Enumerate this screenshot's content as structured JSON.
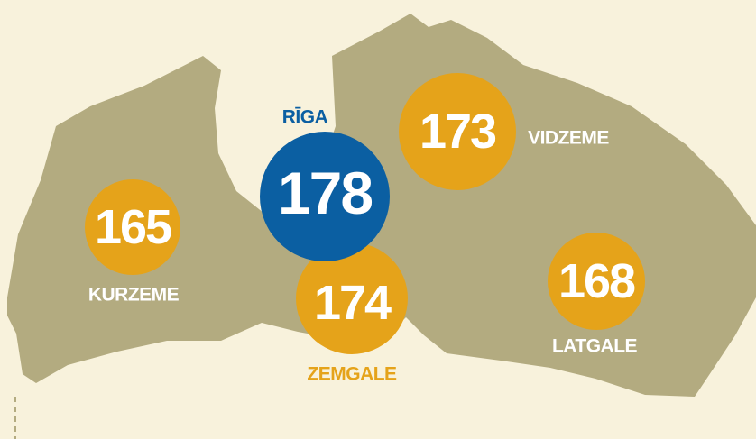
{
  "regions": [
    {
      "name": "KURZEME",
      "value": "165"
    },
    {
      "name": "RĪGA",
      "value": "178"
    },
    {
      "name": "ZEMGALE",
      "value": "174"
    },
    {
      "name": "VIDZEME",
      "value": "173"
    },
    {
      "name": "LATGALE",
      "value": "168"
    }
  ]
}
